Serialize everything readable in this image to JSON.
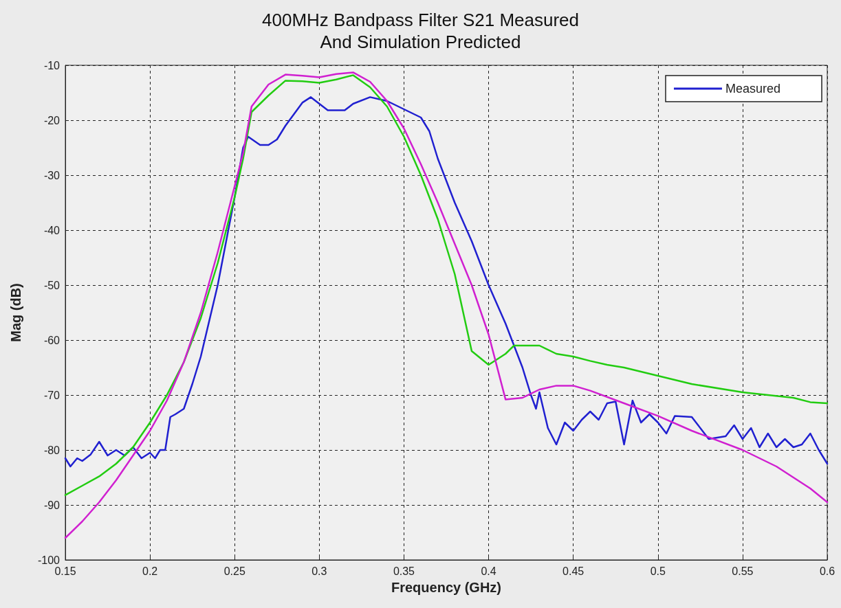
{
  "chart_data": {
    "type": "line",
    "title": "400MHz Bandpass Filter S21 Measured\nAnd Simulation Predicted",
    "xlabel": "Frequency (GHz)",
    "ylabel": "Mag (dB)",
    "xlim": [
      0.15,
      0.6
    ],
    "xticks": [
      0.15,
      0.2,
      0.25,
      0.3,
      0.35,
      0.4,
      0.45,
      0.5,
      0.55,
      0.6
    ],
    "ylim": [
      -100,
      -10
    ],
    "yticks": [
      -100,
      -90,
      -80,
      -70,
      -60,
      -50,
      -40,
      -30,
      -20,
      -10
    ],
    "grid": true,
    "legend": "top right",
    "marker": "none",
    "line_style": "solid",
    "series": [
      {
        "name": "Measured",
        "color": "#2020d0",
        "x": [
          0.15,
          0.153,
          0.157,
          0.16,
          0.165,
          0.17,
          0.175,
          0.18,
          0.185,
          0.19,
          0.195,
          0.2,
          0.203,
          0.206,
          0.209,
          0.212,
          0.215,
          0.22,
          0.225,
          0.23,
          0.24,
          0.25,
          0.255,
          0.258,
          0.265,
          0.27,
          0.275,
          0.28,
          0.29,
          0.295,
          0.3,
          0.305,
          0.315,
          0.32,
          0.33,
          0.34,
          0.35,
          0.36,
          0.365,
          0.37,
          0.38,
          0.39,
          0.4,
          0.41,
          0.42,
          0.425,
          0.428,
          0.43,
          0.435,
          0.44,
          0.445,
          0.45,
          0.455,
          0.46,
          0.465,
          0.47,
          0.475,
          0.48,
          0.485,
          0.49,
          0.495,
          0.5,
          0.505,
          0.51,
          0.52,
          0.53,
          0.54,
          0.545,
          0.55,
          0.555,
          0.56,
          0.565,
          0.57,
          0.575,
          0.58,
          0.585,
          0.59,
          0.595,
          0.6
        ],
        "values": [
          -81.5,
          -83,
          -81.5,
          -82,
          -80.8,
          -78.5,
          -81,
          -80,
          -81,
          -79.5,
          -81.5,
          -80.5,
          -81.5,
          -80,
          -80,
          -74,
          -73.5,
          -72.5,
          -68,
          -63,
          -50,
          -34,
          -25,
          -23,
          -24.5,
          -24.5,
          -23.5,
          -21,
          -16.8,
          -15.8,
          -17,
          -18.2,
          -18.2,
          -17,
          -15.8,
          -16.5,
          -18,
          -19.5,
          -22,
          -27,
          -35,
          -42,
          -50,
          -57,
          -65,
          -70,
          -72.5,
          -69.5,
          -76,
          -79,
          -75,
          -76.5,
          -74.5,
          -73,
          -74.5,
          -71.5,
          -71.2,
          -79,
          -71,
          -75,
          -73.5,
          -75,
          -77,
          -73.8,
          -74,
          -78,
          -77.5,
          -75.5,
          -78,
          -76,
          -79.5,
          -77,
          -79.5,
          -78,
          -79.5,
          -79,
          -77,
          -80,
          -82.5
        ]
      },
      {
        "color": "#22cc11",
        "x": [
          0.15,
          0.16,
          0.17,
          0.18,
          0.19,
          0.2,
          0.21,
          0.22,
          0.23,
          0.24,
          0.25,
          0.255,
          0.26,
          0.27,
          0.28,
          0.29,
          0.3,
          0.31,
          0.32,
          0.33,
          0.34,
          0.35,
          0.36,
          0.37,
          0.38,
          0.39,
          0.4,
          0.41,
          0.415,
          0.43,
          0.44,
          0.45,
          0.46,
          0.47,
          0.48,
          0.5,
          0.52,
          0.55,
          0.58,
          0.59,
          0.6
        ],
        "values": [
          -88.2,
          -86.5,
          -84.8,
          -82.5,
          -79.5,
          -75,
          -70,
          -64,
          -56,
          -46,
          -34,
          -27,
          -18.5,
          -15.5,
          -12.8,
          -12.9,
          -13.2,
          -12.6,
          -11.8,
          -14,
          -17.5,
          -23,
          -30,
          -38,
          -48,
          -62,
          -64.5,
          -62.5,
          -61,
          -61,
          -62.5,
          -63,
          -63.8,
          -64.5,
          -65,
          -66.5,
          -68,
          -69.5,
          -70.5,
          -71.3,
          -71.5
        ]
      },
      {
        "color": "#d020d0",
        "x": [
          0.15,
          0.16,
          0.17,
          0.18,
          0.19,
          0.2,
          0.21,
          0.22,
          0.23,
          0.24,
          0.25,
          0.255,
          0.26,
          0.27,
          0.28,
          0.29,
          0.3,
          0.31,
          0.32,
          0.33,
          0.34,
          0.35,
          0.36,
          0.37,
          0.38,
          0.39,
          0.4,
          0.41,
          0.42,
          0.43,
          0.44,
          0.45,
          0.46,
          0.48,
          0.5,
          0.52,
          0.55,
          0.57,
          0.59,
          0.6
        ],
        "values": [
          -96,
          -93,
          -89.5,
          -85.5,
          -81,
          -76.5,
          -71,
          -64,
          -55,
          -44,
          -32,
          -26,
          -17.5,
          -13.5,
          -11.7,
          -11.9,
          -12.2,
          -11.6,
          -11.3,
          -13,
          -16.5,
          -21.5,
          -28,
          -35,
          -42.5,
          -50,
          -59,
          -70.8,
          -70.5,
          -69,
          -68.3,
          -68.3,
          -69.2,
          -71.5,
          -73.8,
          -76.5,
          -80,
          -83,
          -87,
          -89.5
        ]
      }
    ]
  }
}
